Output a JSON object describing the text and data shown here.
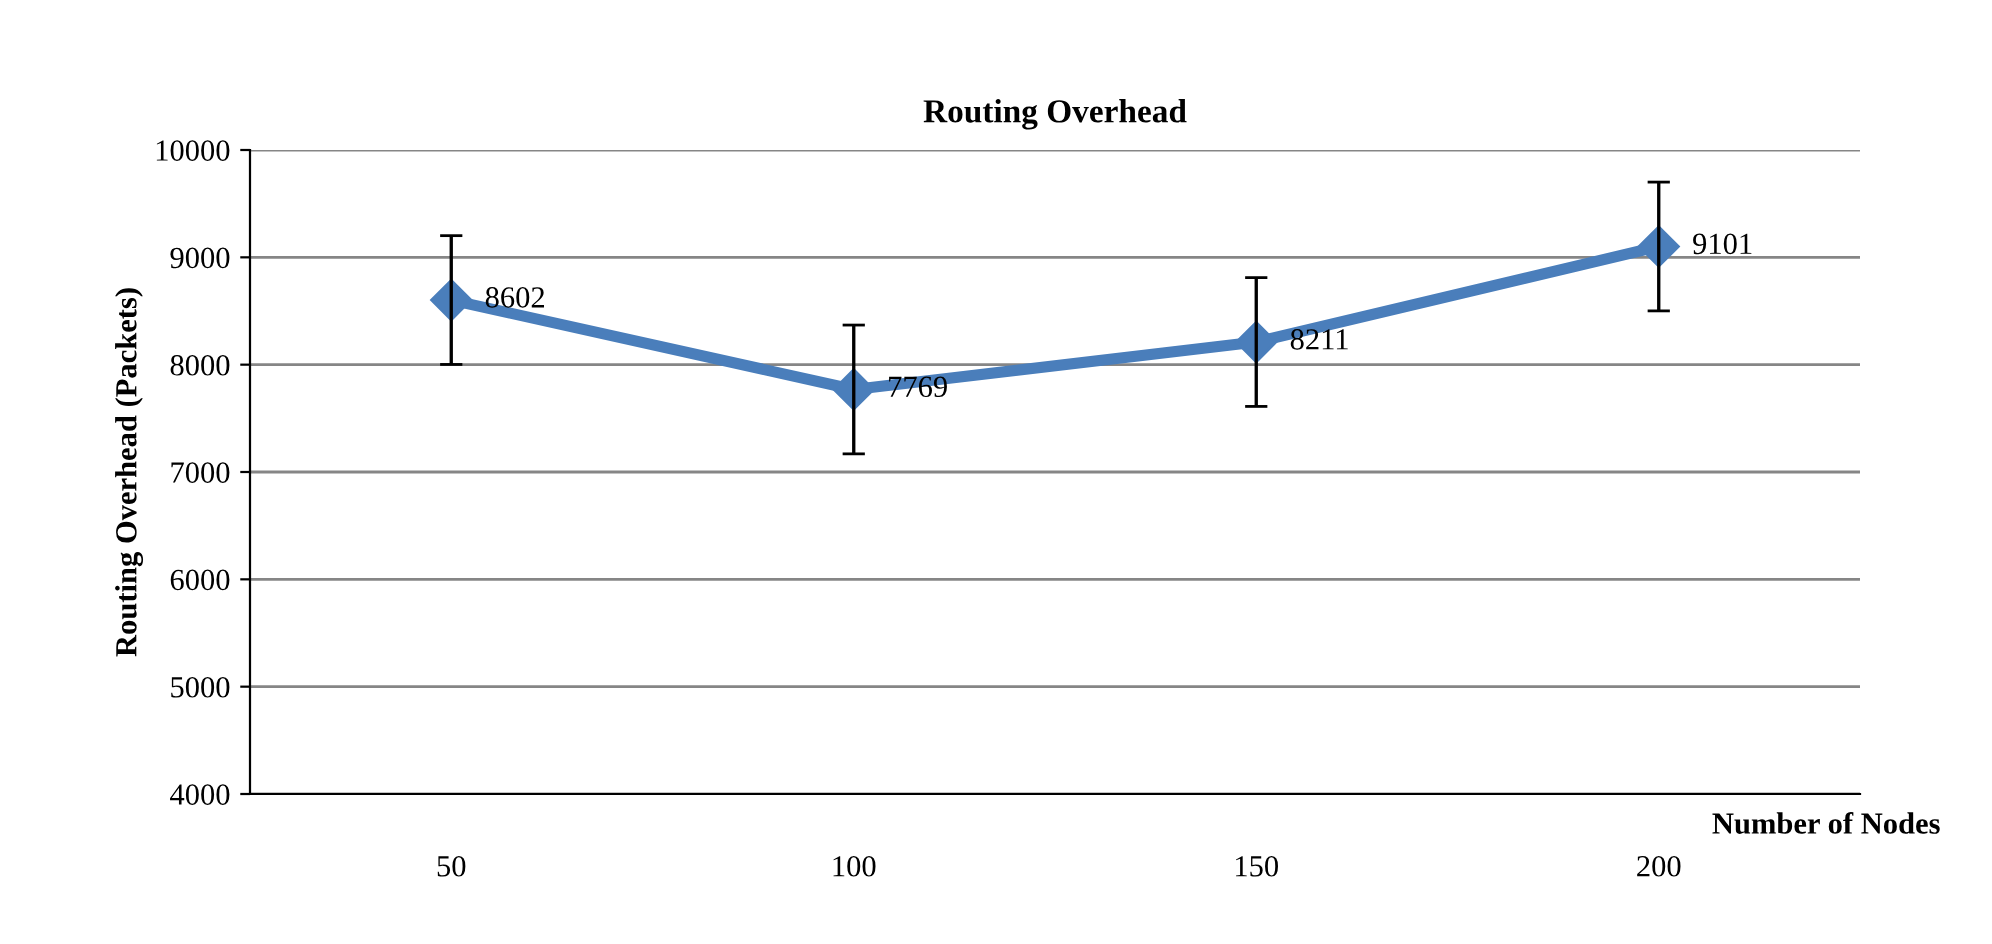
{
  "chart_data": {
    "type": "line",
    "title": "Routing Overhead",
    "xlabel": "Number of Nodes",
    "ylabel": "Routing Overhead (Packets)",
    "categories": [
      "50",
      "100",
      "150",
      "200"
    ],
    "series": [
      {
        "color": "#4a7ebb",
        "values": [
          8602,
          7769,
          8211,
          9101
        ],
        "errors": [
          600,
          600,
          600,
          600
        ]
      }
    ],
    "ylim": [
      4000,
      10000
    ],
    "yticks": [
      4000,
      5000,
      6000,
      7000,
      8000,
      9000,
      10000
    ],
    "grid": "y",
    "marker": "diamond",
    "line_style": "solid",
    "data_labels": true,
    "legend": false
  }
}
